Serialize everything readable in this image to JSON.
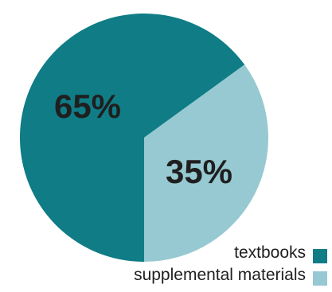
{
  "chart_data": {
    "type": "pie",
    "categories": [
      "textbooks",
      "supplemental materials"
    ],
    "values": [
      65,
      35
    ],
    "value_labels": [
      "65%",
      "35%"
    ],
    "colors": [
      "#0f7c86",
      "#97c9d2"
    ],
    "legend_position": "bottom-right",
    "title": "",
    "start_direction": "down",
    "direction": "clockwise"
  }
}
